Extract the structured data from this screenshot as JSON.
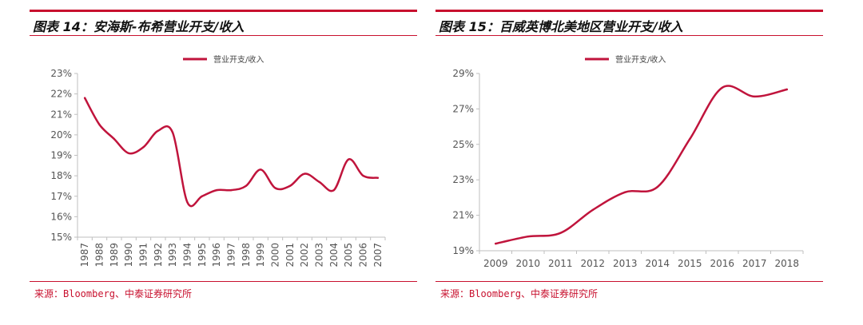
{
  "theme": {
    "accent": "#c8102e",
    "line": "#c0143c",
    "axis": "#bfbfbf"
  },
  "chart_data": [
    {
      "type": "line",
      "title": "图表 14：安海斯-布希营业开支/收入",
      "legend": "营业开支/收入",
      "legend_position": "top-center",
      "x": [
        "1987",
        "1988",
        "1989",
        "1990",
        "1991",
        "1992",
        "1993",
        "1994",
        "1995",
        "1996",
        "1997",
        "1998",
        "1999",
        "2000",
        "2001",
        "2002",
        "2003",
        "2004",
        "2005",
        "2006",
        "2007"
      ],
      "series": [
        {
          "name": "营业开支/收入",
          "values": [
            21.8,
            20.5,
            19.8,
            19.1,
            19.4,
            20.2,
            20.1,
            16.7,
            17.0,
            17.3,
            17.3,
            17.5,
            18.3,
            17.4,
            17.5,
            18.1,
            17.7,
            17.3,
            18.8,
            18.0,
            17.9
          ]
        }
      ],
      "ylim": [
        15,
        23
      ],
      "yticks": [
        "15%",
        "16%",
        "17%",
        "18%",
        "19%",
        "20%",
        "21%",
        "22%",
        "23%"
      ],
      "x_label_rotation": "vertical",
      "source": "来源：Bloomberg、中泰证券研究所"
    },
    {
      "type": "line",
      "title": "图表 15：百威英博北美地区营业开支/收入",
      "legend": "营业开支/收入",
      "legend_position": "top-center",
      "x": [
        "2009",
        "2010",
        "2011",
        "2012",
        "2013",
        "2014",
        "2015",
        "2016",
        "2017",
        "2018"
      ],
      "series": [
        {
          "name": "营业开支/收入",
          "values": [
            19.4,
            19.8,
            20.0,
            21.3,
            22.3,
            22.6,
            25.3,
            28.2,
            27.7,
            28.1
          ]
        }
      ],
      "ylim": [
        19,
        29
      ],
      "yticks": [
        "19%",
        "21%",
        "23%",
        "25%",
        "27%",
        "29%"
      ],
      "x_label_rotation": "horizontal",
      "source": "来源：Bloomberg、中泰证券研究所"
    }
  ]
}
